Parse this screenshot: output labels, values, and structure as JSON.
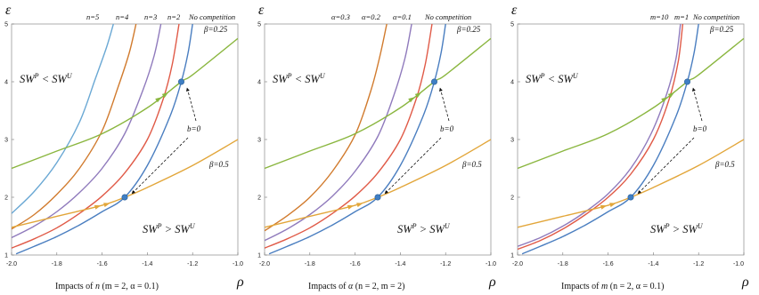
{
  "colors": {
    "blue": "#4a7ec0",
    "red": "#e05a47",
    "purple": "#8f7abc",
    "orange": "#d17b2e",
    "lightblue": "#6aa8d4",
    "green": "#8ab63f",
    "yellow": "#e2a63a",
    "pink": "#e8a1b7",
    "point": "#3f7fc4"
  },
  "chart_data": [
    {
      "type": "line",
      "ylabel": "ε",
      "xlabel": "ρ",
      "xlim": [
        -2.0,
        -1.0
      ],
      "ylim": [
        1,
        5
      ],
      "xticks": [
        "-2.0",
        "-1.8",
        "-1.6",
        "-1.4",
        "-1.2",
        "-1.0"
      ],
      "yticks": [
        "1",
        "2",
        "3",
        "4",
        "5"
      ],
      "caption_pre": "Impacts of ",
      "caption_var": "n",
      "caption_post": " (m = 2, α = 0.1)",
      "region_top": "SW^P < SW^U",
      "region_bottom": "SW^P > SW^U",
      "top_labels": [
        "n=5",
        "n=4",
        "n=3",
        "n=2",
        "No competition"
      ],
      "series": [
        {
          "name": "No competition",
          "color": "blue",
          "x": [
            -1.98,
            -1.9,
            -1.8,
            -1.7,
            -1.6,
            -1.5,
            -1.4,
            -1.3,
            -1.25,
            -1.22,
            -1.2
          ],
          "y": [
            1.02,
            1.15,
            1.32,
            1.52,
            1.75,
            2.0,
            2.55,
            3.4,
            4.0,
            4.5,
            5.0
          ]
        },
        {
          "name": "n=2",
          "color": "red",
          "x": [
            -2.0,
            -1.9,
            -1.8,
            -1.7,
            -1.6,
            -1.5,
            -1.4,
            -1.33,
            -1.29,
            -1.26
          ],
          "y": [
            1.12,
            1.28,
            1.47,
            1.72,
            2.02,
            2.42,
            3.0,
            3.7,
            4.3,
            5.0
          ]
        },
        {
          "name": "n=3",
          "color": "purple",
          "x": [
            -2.0,
            -1.9,
            -1.8,
            -1.7,
            -1.6,
            -1.5,
            -1.42,
            -1.37,
            -1.34
          ],
          "y": [
            1.3,
            1.5,
            1.75,
            2.08,
            2.5,
            3.1,
            3.85,
            4.45,
            5.0
          ]
        },
        {
          "name": "n=4",
          "color": "orange",
          "x": [
            -2.0,
            -1.9,
            -1.8,
            -1.7,
            -1.6,
            -1.53,
            -1.48,
            -1.45
          ],
          "y": [
            1.45,
            1.7,
            2.05,
            2.5,
            3.15,
            3.9,
            4.5,
            5.0
          ]
        },
        {
          "name": "n=5",
          "color": "lightblue",
          "x": [
            -2.0,
            -1.9,
            -1.8,
            -1.7,
            -1.63,
            -1.58,
            -1.55
          ],
          "y": [
            1.72,
            2.1,
            2.6,
            3.3,
            4.05,
            4.6,
            5.0
          ]
        },
        {
          "name": "β=0.25",
          "color": "green",
          "x": [
            -2.0,
            -1.8,
            -1.6,
            -1.4,
            -1.25,
            -1.2,
            -1.0
          ],
          "y": [
            2.5,
            2.8,
            3.1,
            3.55,
            4.0,
            4.12,
            4.75
          ]
        },
        {
          "name": "β=0.5",
          "color": "yellow",
          "x": [
            -2.0,
            -1.8,
            -1.6,
            -1.5,
            -1.4,
            -1.2,
            -1.0
          ],
          "y": [
            1.48,
            1.67,
            1.86,
            2.0,
            2.17,
            2.55,
            3.0
          ]
        }
      ],
      "points": [
        {
          "x": -1.25,
          "y": 4.0
        },
        {
          "x": -1.5,
          "y": 2.0
        }
      ],
      "beta_labels": [
        "β=0.25",
        "β=0.5"
      ],
      "b_label": "b=0"
    },
    {
      "type": "line",
      "ylabel": "ε",
      "xlabel": "ρ",
      "xlim": [
        -2.0,
        -1.0
      ],
      "ylim": [
        1,
        5
      ],
      "xticks": [
        "-2.0",
        "-1.8",
        "-1.6",
        "-1.4",
        "-1.2",
        "-1.0"
      ],
      "yticks": [
        "1",
        "2",
        "3",
        "4",
        "5"
      ],
      "caption_pre": "Impacts of ",
      "caption_var": "α",
      "caption_post": " (n = 2, m = 2)",
      "region_top": "SW^P < SW^U",
      "region_bottom": "SW^P > SW^U",
      "top_labels": [
        "α=0.3",
        "α=0.2",
        "α=0.1",
        "No competition"
      ],
      "series": [
        {
          "name": "No competition",
          "color": "blue",
          "x": [
            -1.98,
            -1.9,
            -1.8,
            -1.7,
            -1.6,
            -1.5,
            -1.4,
            -1.3,
            -1.25,
            -1.22,
            -1.2
          ],
          "y": [
            1.02,
            1.15,
            1.32,
            1.52,
            1.75,
            2.0,
            2.55,
            3.4,
            4.0,
            4.5,
            5.0
          ]
        },
        {
          "name": "α=0.1",
          "color": "red",
          "x": [
            -2.0,
            -1.9,
            -1.8,
            -1.7,
            -1.6,
            -1.5,
            -1.4,
            -1.33,
            -1.29,
            -1.26
          ],
          "y": [
            1.12,
            1.28,
            1.47,
            1.72,
            2.02,
            2.42,
            3.0,
            3.7,
            4.3,
            5.0
          ]
        },
        {
          "name": "α=0.2",
          "color": "purple",
          "x": [
            -2.0,
            -1.9,
            -1.8,
            -1.7,
            -1.6,
            -1.5,
            -1.43,
            -1.38,
            -1.35
          ],
          "y": [
            1.25,
            1.45,
            1.7,
            2.02,
            2.45,
            3.05,
            3.75,
            4.4,
            5.0
          ]
        },
        {
          "name": "α=0.3",
          "color": "orange",
          "x": [
            -2.0,
            -1.9,
            -1.8,
            -1.7,
            -1.6,
            -1.53,
            -1.49,
            -1.46
          ],
          "y": [
            1.42,
            1.68,
            2.0,
            2.45,
            3.08,
            3.85,
            4.45,
            5.0
          ]
        },
        {
          "name": "β=0.25",
          "color": "green",
          "x": [
            -2.0,
            -1.8,
            -1.6,
            -1.4,
            -1.25,
            -1.2,
            -1.0
          ],
          "y": [
            2.5,
            2.8,
            3.1,
            3.55,
            4.0,
            4.12,
            4.75
          ]
        },
        {
          "name": "β=0.5",
          "color": "yellow",
          "x": [
            -2.0,
            -1.8,
            -1.6,
            -1.5,
            -1.4,
            -1.2,
            -1.0
          ],
          "y": [
            1.48,
            1.67,
            1.86,
            2.0,
            2.17,
            2.55,
            3.0
          ]
        }
      ],
      "points": [
        {
          "x": -1.25,
          "y": 4.0
        },
        {
          "x": -1.5,
          "y": 2.0
        }
      ],
      "beta_labels": [
        "β=0.25",
        "β=0.5"
      ],
      "b_label": "b=0"
    },
    {
      "type": "line",
      "ylabel": "ε",
      "xlabel": "ρ",
      "xlim": [
        -2.0,
        -1.0
      ],
      "ylim": [
        1,
        5
      ],
      "xticks": [
        "-2.0",
        "-1.8",
        "-1.6",
        "-1.4",
        "-1.2",
        "-1.0"
      ],
      "yticks": [
        "1",
        "2",
        "3",
        "4",
        "5"
      ],
      "caption_pre": "Impacts of ",
      "caption_var": "m",
      "caption_post": " (n = 2, α = 0.1)",
      "region_top": "SW^P < SW^U",
      "region_bottom": "SW^P > SW^U",
      "top_labels": [
        "m=10",
        "m=1",
        "No competition"
      ],
      "series": [
        {
          "name": "No competition",
          "color": "blue",
          "x": [
            -1.98,
            -1.9,
            -1.8,
            -1.7,
            -1.6,
            -1.5,
            -1.4,
            -1.3,
            -1.25,
            -1.22,
            -1.2
          ],
          "y": [
            1.02,
            1.15,
            1.32,
            1.52,
            1.75,
            2.0,
            2.55,
            3.4,
            4.0,
            4.5,
            5.0
          ]
        },
        {
          "name": "m=1",
          "color": "red",
          "x": [
            -2.0,
            -1.9,
            -1.8,
            -1.7,
            -1.6,
            -1.5,
            -1.4,
            -1.33,
            -1.29,
            -1.27
          ],
          "y": [
            1.1,
            1.25,
            1.45,
            1.7,
            2.0,
            2.4,
            3.0,
            3.7,
            4.35,
            5.0
          ]
        },
        {
          "name": "m=10",
          "color": "purple",
          "x": [
            -2.0,
            -1.9,
            -1.8,
            -1.7,
            -1.6,
            -1.5,
            -1.41,
            -1.34,
            -1.3,
            -1.28
          ],
          "y": [
            1.15,
            1.3,
            1.5,
            1.75,
            2.06,
            2.5,
            3.1,
            3.8,
            4.4,
            5.0
          ]
        },
        {
          "name": "β=0.25",
          "color": "green",
          "x": [
            -2.0,
            -1.8,
            -1.6,
            -1.4,
            -1.25,
            -1.2,
            -1.0
          ],
          "y": [
            2.5,
            2.8,
            3.1,
            3.55,
            4.0,
            4.12,
            4.75
          ]
        },
        {
          "name": "β=0.5",
          "color": "yellow",
          "x": [
            -2.0,
            -1.8,
            -1.6,
            -1.5,
            -1.4,
            -1.2,
            -1.0
          ],
          "y": [
            1.48,
            1.67,
            1.86,
            2.0,
            2.17,
            2.55,
            3.0
          ]
        }
      ],
      "points": [
        {
          "x": -1.25,
          "y": 4.0
        },
        {
          "x": -1.5,
          "y": 2.0
        }
      ],
      "beta_labels": [
        "β=0.25",
        "β=0.5"
      ],
      "b_label": "b=0"
    }
  ]
}
